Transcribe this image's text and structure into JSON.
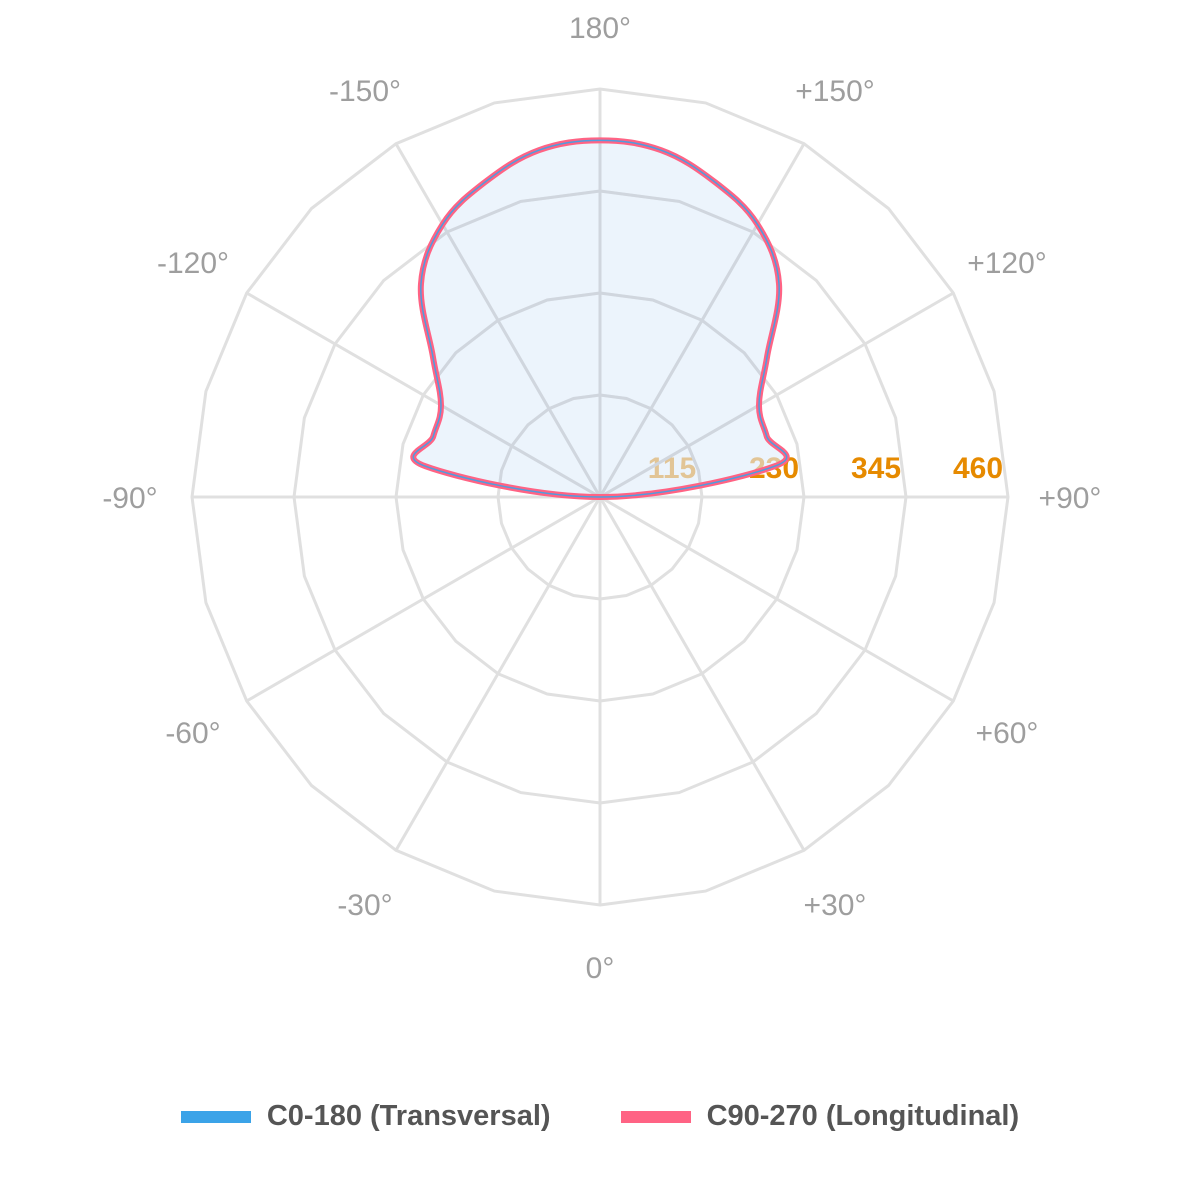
{
  "chart_data": {
    "type": "polar-line",
    "angle_labels": [
      "0°",
      "+30°",
      "+60°",
      "+90°",
      "+120°",
      "+150°",
      "180°",
      "-150°",
      "-120°",
      "-90°",
      "-60°",
      "-30°"
    ],
    "ring_labels": [
      "115",
      "230",
      "345",
      "460"
    ],
    "rmax": 460,
    "angles": [
      180,
      170,
      160,
      150,
      140,
      130,
      120,
      110,
      100,
      90
    ],
    "series": [
      {
        "name": "C0-180 (Transversal)",
        "color": "#3ba3e8",
        "values": [
          402,
          397,
          378,
          355,
          314,
          246,
          207,
          200,
          200,
          0
        ]
      },
      {
        "name": "C90-270 (Longitudinal)",
        "color": "#ff6384",
        "values": [
          402,
          397,
          378,
          355,
          314,
          246,
          207,
          200,
          200,
          0
        ]
      }
    ],
    "fill_color": "#dfecfa"
  }
}
